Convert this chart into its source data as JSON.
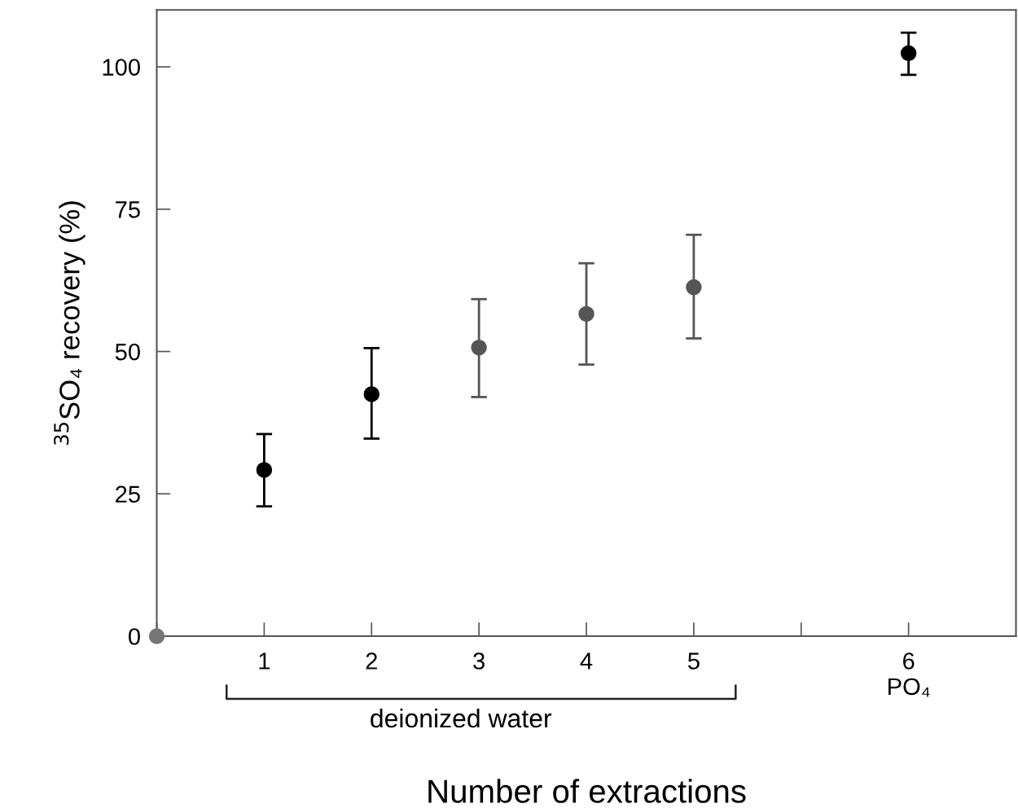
{
  "chart_data": {
    "type": "scatter",
    "ylabel": "$^{35}$SO₄ recovery (%)",
    "xlabel": "Number of extractions",
    "categories": [
      null,
      "1",
      "2",
      "3",
      "4",
      "5",
      null,
      "6\nPO₄"
    ],
    "ylim": [
      0,
      110
    ],
    "yticks": [
      0,
      25,
      50,
      75,
      100
    ],
    "marker": "circle",
    "grid": false,
    "annotations": [
      "deionized water"
    ],
    "series": [
      {
        "color": "#000000",
        "values": [
          null,
          29.2,
          42.5,
          null,
          null,
          null,
          null,
          102.4
        ],
        "errors": [
          null,
          [
            22.8,
            35.5
          ],
          [
            34.7,
            50.6
          ],
          null,
          null,
          null,
          null,
          [
            98.6,
            106
          ]
        ]
      },
      {
        "color": "#555555",
        "values": [
          null,
          null,
          null,
          50.7,
          56.6,
          61.3,
          null,
          null
        ],
        "errors": [
          null,
          null,
          null,
          [
            42,
            59.2
          ],
          [
            47.7,
            65.5
          ],
          [
            52.3,
            70.5
          ],
          null,
          null
        ]
      },
      {
        "color": "#777777",
        "values": [
          0,
          null,
          null,
          null,
          null,
          null,
          null,
          null
        ]
      }
    ]
  }
}
